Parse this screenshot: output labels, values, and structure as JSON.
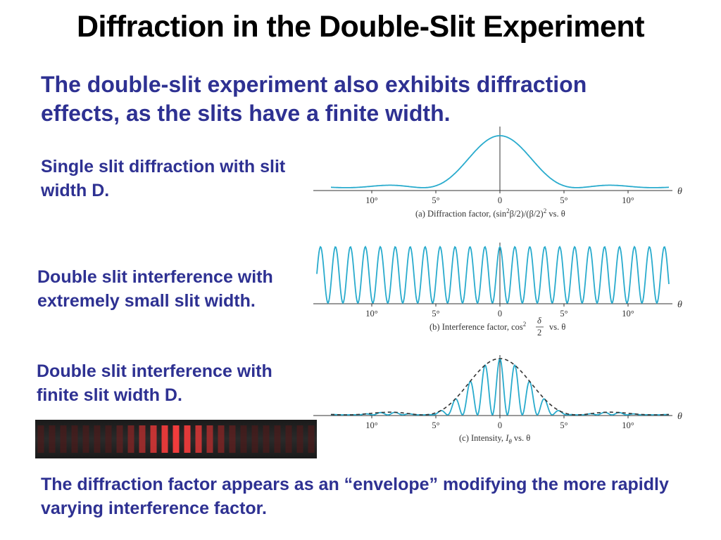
{
  "title": "Diffraction in the Double-Slit Experiment",
  "intro": "The double-slit experiment also exhibits diffraction effects, as the slits have a finite width.",
  "labels": {
    "single": "Single slit diffraction with slit width D.",
    "small": "Double slit interference with extremely small slit width.",
    "finite": "Double slit interference with finite slit width D."
  },
  "conclusion": "The diffraction factor appears as an “envelope” modifying the more rapidly varying interference factor.",
  "colors": {
    "heading": "#000000",
    "text": "#2e3192",
    "curve": "#29abcd",
    "envelope": "#333333",
    "fringe": "#d9342b"
  },
  "chart_data": [
    {
      "type": "line",
      "panel": "a",
      "caption_pre": "(a) Diffraction factor, (sin",
      "caption_sup": "2",
      "caption_mid": "β/2)/(β/2)",
      "caption_sup2": "2",
      "caption_post": " vs. θ",
      "xlabel": "θ",
      "tick_labels": [
        "10°",
        "5°",
        "0",
        "5°",
        "10°"
      ],
      "tick_values": [
        -10,
        -5,
        0,
        5,
        10
      ],
      "xlim": [
        -14,
        14
      ],
      "ylim": [
        0,
        1
      ],
      "function": "(sin(beta/2)/(beta/2))^2, first zeros at ±6°",
      "zero_spacing_deg": 6
    },
    {
      "type": "line",
      "panel": "b",
      "caption_pre": "(b) Interference factor, cos",
      "caption_sup": "2",
      "caption_frac_top": "δ",
      "caption_frac_bottom": "2",
      "caption_post": "vs. θ",
      "xlabel": "θ",
      "tick_labels": [
        "10°",
        "5°",
        "0",
        "5°",
        "10°"
      ],
      "tick_values": [
        -10,
        -5,
        0,
        5,
        10
      ],
      "xlim": [
        -14,
        14
      ],
      "ylim": [
        0,
        1
      ],
      "function": "cos^2(delta/2), 25 maxima across range",
      "period_deg": 1.1667
    },
    {
      "type": "line",
      "panel": "c",
      "caption_pre": "(c) Intensity, ",
      "caption_var": "I",
      "caption_sub": "θ",
      "caption_post": " vs. θ",
      "xlabel": "θ",
      "tick_labels": [
        "10°",
        "5°",
        "0",
        "5°",
        "10°"
      ],
      "tick_values": [
        -10,
        -5,
        0,
        5,
        10
      ],
      "xlim": [
        -14,
        14
      ],
      "ylim": [
        0,
        1
      ],
      "series": [
        {
          "name": "intensity",
          "function": "product of diffraction and interference factors"
        },
        {
          "name": "envelope",
          "style": "dashed",
          "function": "diffraction factor"
        }
      ]
    }
  ],
  "fringes": {
    "count": 25,
    "central_bright_count": 9
  }
}
